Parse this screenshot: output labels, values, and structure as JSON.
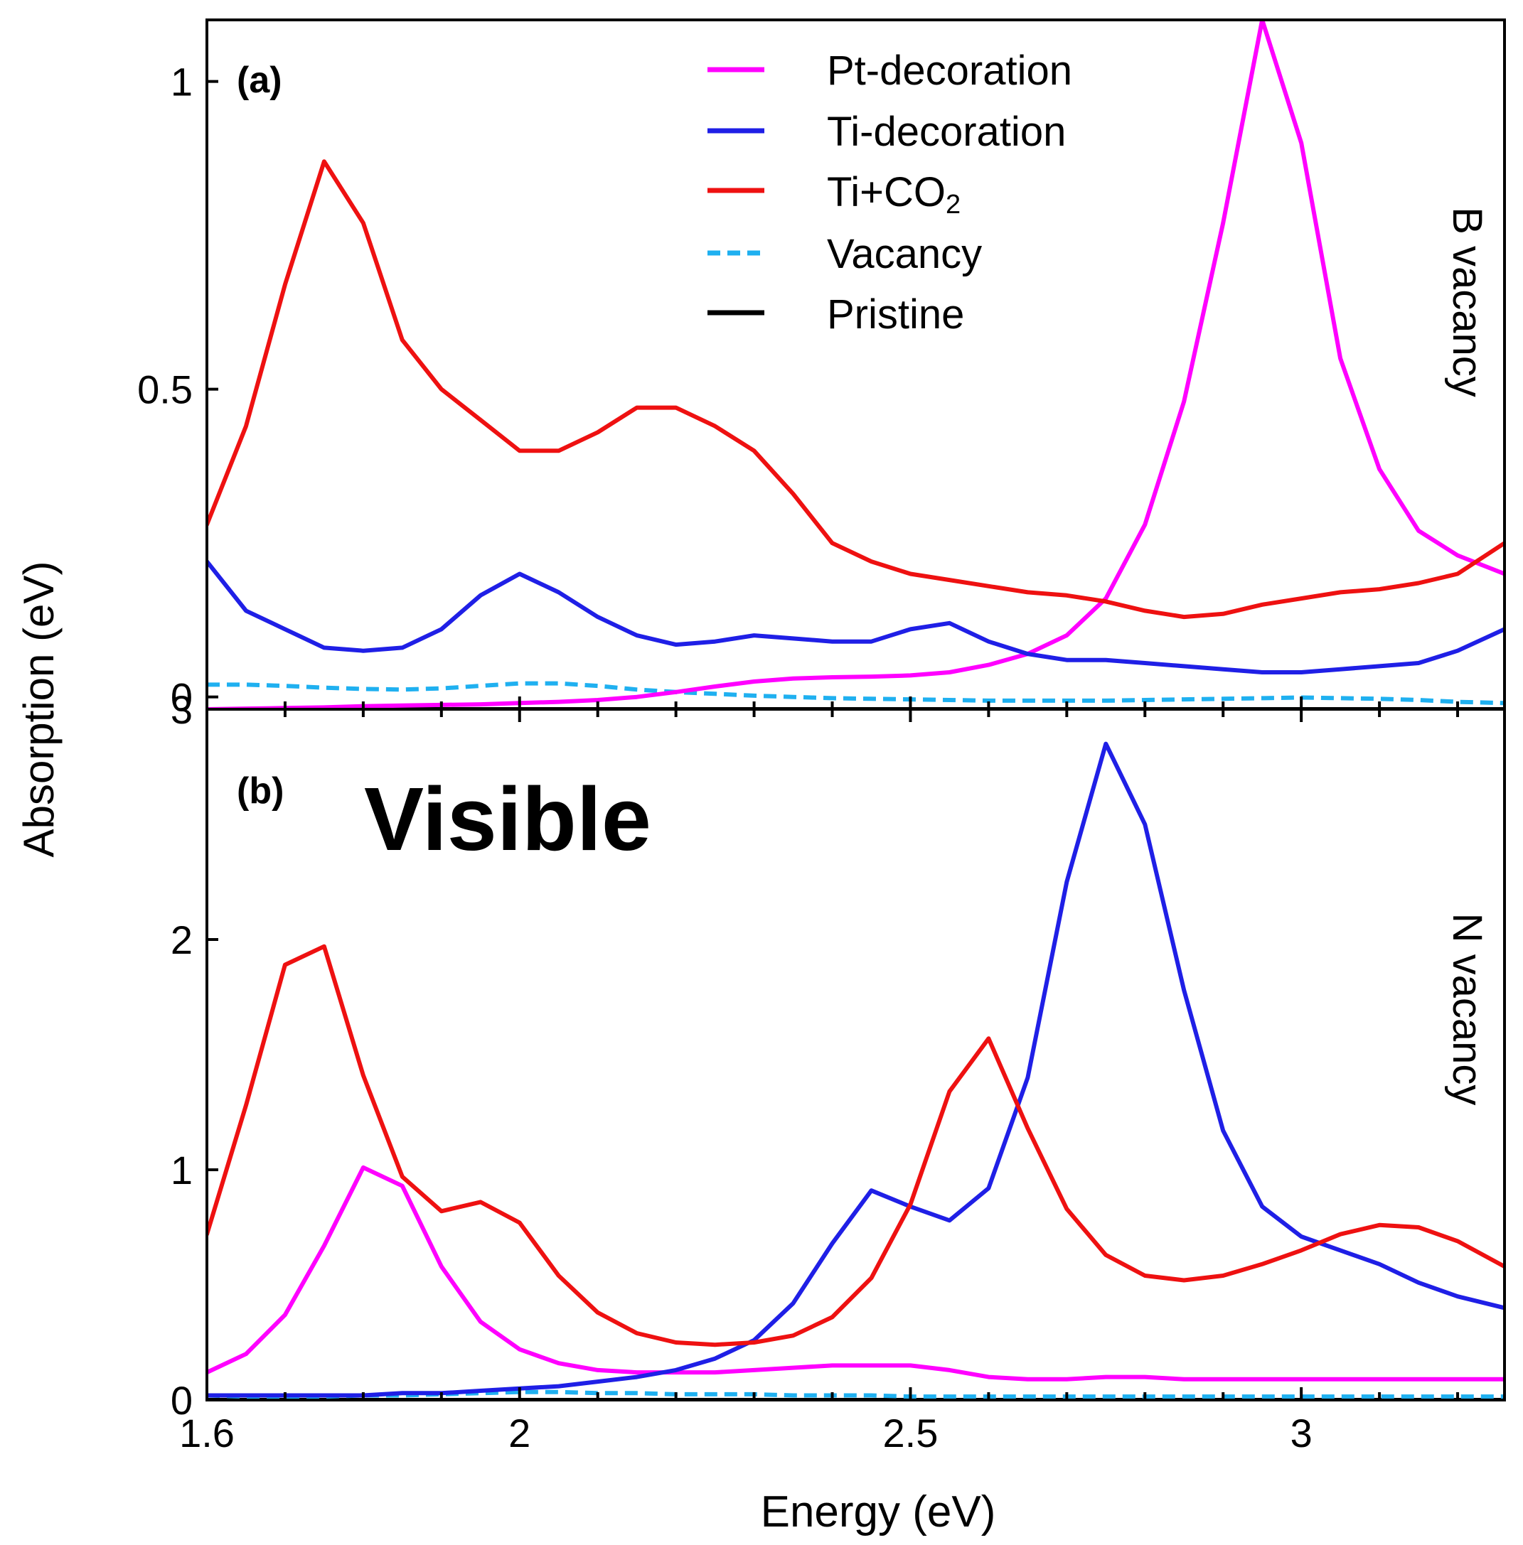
{
  "figure": {
    "ylabel": "Absorption (eV)",
    "xlabel": "Energy (eV)",
    "visible_label": "Visible",
    "legend": [
      {
        "key": "pt",
        "label": "Pt-decoration",
        "color": "#ff00ff",
        "dashed": false
      },
      {
        "key": "ti",
        "label": "Ti-decoration",
        "color": "#1f1fe6",
        "dashed": false
      },
      {
        "key": "tico2",
        "label": "Ti+CO",
        "sub": "2",
        "color": "#ee1111",
        "dashed": false
      },
      {
        "key": "vac",
        "label": "Vacancy",
        "color": "#1fb0f0",
        "dashed": true
      },
      {
        "key": "pri",
        "label": "Pristine",
        "color": "#000000",
        "dashed": false
      }
    ]
  },
  "chart_data": [
    {
      "type": "line",
      "panel": "(a)",
      "side_label": "B vacancy",
      "xlim": [
        1.6,
        3.26
      ],
      "ylim": [
        -0.02,
        1.1
      ],
      "xticks": [
        1.6,
        2,
        2.5,
        3
      ],
      "xtick_labels": [
        "1.6",
        "2",
        "2.5",
        "3"
      ],
      "yticks": [
        0,
        0.5,
        1
      ],
      "ytick_labels": [
        "0",
        "0.5",
        "1"
      ],
      "x": [
        1.6,
        1.65,
        1.7,
        1.75,
        1.8,
        1.85,
        1.9,
        1.95,
        2.0,
        2.05,
        2.1,
        2.15,
        2.2,
        2.25,
        2.3,
        2.35,
        2.4,
        2.45,
        2.5,
        2.55,
        2.6,
        2.65,
        2.7,
        2.75,
        2.8,
        2.85,
        2.9,
        2.95,
        3.0,
        3.05,
        3.1,
        3.15,
        3.2,
        3.26
      ],
      "series": [
        {
          "key": "pt",
          "name": "Pt-decoration",
          "values": [
            -0.02,
            -0.019,
            -0.018,
            -0.017,
            -0.015,
            -0.014,
            -0.013,
            -0.012,
            -0.01,
            -0.008,
            -0.005,
            0.0,
            0.008,
            0.017,
            0.025,
            0.03,
            0.032,
            0.033,
            0.035,
            0.04,
            0.052,
            0.07,
            0.1,
            0.16,
            0.28,
            0.48,
            0.77,
            1.1,
            0.9,
            0.55,
            0.37,
            0.27,
            0.23,
            0.2
          ]
        },
        {
          "key": "ti",
          "name": "Ti-decoration",
          "values": [
            0.22,
            0.14,
            0.11,
            0.08,
            0.075,
            0.08,
            0.11,
            0.165,
            0.2,
            0.17,
            0.13,
            0.1,
            0.085,
            0.09,
            0.1,
            0.095,
            0.09,
            0.09,
            0.11,
            0.12,
            0.09,
            0.07,
            0.06,
            0.06,
            0.055,
            0.05,
            0.045,
            0.04,
            0.04,
            0.045,
            0.05,
            0.055,
            0.075,
            0.11
          ]
        },
        {
          "key": "tico2",
          "name": "Ti+CO2",
          "values": [
            0.28,
            0.44,
            0.67,
            0.87,
            0.77,
            0.58,
            0.5,
            0.45,
            0.4,
            0.4,
            0.43,
            0.47,
            0.47,
            0.44,
            0.4,
            0.33,
            0.25,
            0.22,
            0.2,
            0.19,
            0.18,
            0.17,
            0.165,
            0.155,
            0.14,
            0.13,
            0.135,
            0.15,
            0.16,
            0.17,
            0.175,
            0.185,
            0.2,
            0.25
          ]
        },
        {
          "key": "vac",
          "name": "Vacancy",
          "values": [
            0.02,
            0.02,
            0.018,
            0.015,
            0.013,
            0.012,
            0.014,
            0.018,
            0.022,
            0.022,
            0.018,
            0.012,
            0.008,
            0.005,
            0.002,
            0.0,
            -0.002,
            -0.003,
            -0.004,
            -0.005,
            -0.006,
            -0.006,
            -0.006,
            -0.006,
            -0.005,
            -0.004,
            -0.003,
            -0.002,
            -0.001,
            -0.002,
            -0.003,
            -0.005,
            -0.008,
            -0.01
          ]
        },
        {
          "key": "pri",
          "name": "Pristine",
          "values": [
            -0.02,
            -0.02,
            -0.02,
            -0.02,
            -0.02,
            -0.02,
            -0.02,
            -0.02,
            -0.02,
            -0.02,
            -0.02,
            -0.02,
            -0.02,
            -0.02,
            -0.02,
            -0.02,
            -0.02,
            -0.02,
            -0.02,
            -0.02,
            -0.02,
            -0.02,
            -0.02,
            -0.02,
            -0.02,
            -0.02,
            -0.02,
            -0.02,
            -0.02,
            -0.02,
            -0.02,
            -0.02,
            -0.02,
            -0.02
          ]
        }
      ]
    },
    {
      "type": "line",
      "panel": "(b)",
      "side_label": "N vacancy",
      "xlim": [
        1.6,
        3.26
      ],
      "ylim": [
        0,
        3.0
      ],
      "xticks": [
        1.6,
        2,
        2.5,
        3
      ],
      "xtick_labels": [
        "1.6",
        "2",
        "2.5",
        "3"
      ],
      "yticks": [
        0,
        1,
        2,
        3
      ],
      "ytick_labels": [
        "0",
        "1",
        "2",
        "3"
      ],
      "x": [
        1.6,
        1.65,
        1.7,
        1.75,
        1.8,
        1.85,
        1.9,
        1.95,
        2.0,
        2.05,
        2.1,
        2.15,
        2.2,
        2.25,
        2.3,
        2.35,
        2.4,
        2.45,
        2.5,
        2.55,
        2.6,
        2.65,
        2.7,
        2.75,
        2.8,
        2.85,
        2.9,
        2.95,
        3.0,
        3.05,
        3.1,
        3.15,
        3.2,
        3.26
      ],
      "series": [
        {
          "key": "pt",
          "name": "Pt-decoration",
          "values": [
            0.12,
            0.2,
            0.37,
            0.67,
            1.01,
            0.93,
            0.58,
            0.34,
            0.22,
            0.16,
            0.13,
            0.12,
            0.12,
            0.12,
            0.13,
            0.14,
            0.15,
            0.15,
            0.15,
            0.13,
            0.1,
            0.09,
            0.09,
            0.1,
            0.1,
            0.09,
            0.09,
            0.09,
            0.09,
            0.09,
            0.09,
            0.09,
            0.09,
            0.09
          ]
        },
        {
          "key": "ti",
          "name": "Ti-decoration",
          "values": [
            0.02,
            0.02,
            0.02,
            0.02,
            0.02,
            0.03,
            0.03,
            0.04,
            0.05,
            0.06,
            0.08,
            0.1,
            0.13,
            0.18,
            0.26,
            0.42,
            0.68,
            0.91,
            0.84,
            0.78,
            0.92,
            1.4,
            2.25,
            2.85,
            2.5,
            1.78,
            1.17,
            0.84,
            0.71,
            0.65,
            0.59,
            0.51,
            0.45,
            0.4
          ]
        },
        {
          "key": "tico2",
          "name": "Ti+CO2",
          "values": [
            0.72,
            1.28,
            1.89,
            1.97,
            1.41,
            0.97,
            0.82,
            0.86,
            0.77,
            0.54,
            0.38,
            0.29,
            0.25,
            0.24,
            0.25,
            0.28,
            0.36,
            0.53,
            0.85,
            1.34,
            1.57,
            1.18,
            0.83,
            0.63,
            0.54,
            0.52,
            0.54,
            0.59,
            0.65,
            0.72,
            0.76,
            0.75,
            0.69,
            0.58
          ]
        },
        {
          "key": "vac",
          "name": "Vacancy",
          "values": [
            0.02,
            0.015,
            0.015,
            0.015,
            0.02,
            0.02,
            0.025,
            0.03,
            0.035,
            0.035,
            0.03,
            0.03,
            0.025,
            0.025,
            0.025,
            0.02,
            0.02,
            0.02,
            0.015,
            0.015,
            0.015,
            0.015,
            0.015,
            0.015,
            0.015,
            0.015,
            0.015,
            0.015,
            0.015,
            0.015,
            0.015,
            0.015,
            0.015,
            0.015
          ]
        },
        {
          "key": "pri",
          "name": "Pristine",
          "values": [
            0,
            0,
            0,
            0,
            0,
            0,
            0,
            0,
            0,
            0,
            0,
            0,
            0,
            0,
            0,
            0,
            0,
            0,
            0,
            0,
            0,
            0,
            0,
            0,
            0,
            0,
            0,
            0,
            0,
            0,
            0,
            0,
            0,
            0
          ]
        }
      ]
    }
  ]
}
